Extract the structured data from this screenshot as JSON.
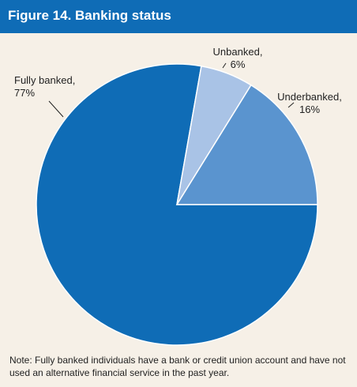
{
  "chart_data": {
    "type": "pie",
    "title": "Figure 14. Banking status",
    "values": [
      77,
      6,
      16
    ],
    "value_labels": [
      "Fully banked, 77%",
      "Unbanked, 6%",
      "Underbanked, 16%"
    ],
    "colors": [
      "#0f6cb6",
      "#a9c3e6",
      "#5a94cf"
    ],
    "note": "Note: Fully banked individuals have a bank or credit union account and have not used an alternative financial service in the past year."
  }
}
